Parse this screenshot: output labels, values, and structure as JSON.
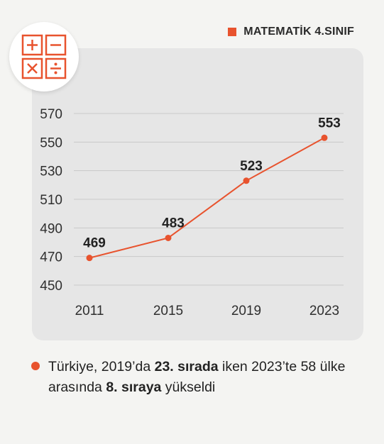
{
  "legend": {
    "label": "MATEMATİK 4.SINIF",
    "color": "#e8532e"
  },
  "icon": {
    "name": "math-operators-icon"
  },
  "chart_data": {
    "type": "line",
    "categories": [
      "2011",
      "2015",
      "2019",
      "2023"
    ],
    "series": [
      {
        "name": "MATEMATİK 4.SINIF",
        "values": [
          469,
          483,
          523,
          553
        ],
        "color": "#e8532e"
      }
    ],
    "data_labels": [
      "469",
      "483",
      "523",
      "553"
    ],
    "yticks": [
      "450",
      "470",
      "490",
      "510",
      "530",
      "550",
      "570"
    ],
    "ylim": [
      450,
      570
    ],
    "grid": true,
    "legend_position": "top-right"
  },
  "note": {
    "part1": "Türkiye, 2019’da ",
    "bold1": "23. sırada",
    "part2": " iken 2023’te 58 ülke arasında ",
    "bold2": "8. sıraya",
    "part3": " yükseldi"
  }
}
